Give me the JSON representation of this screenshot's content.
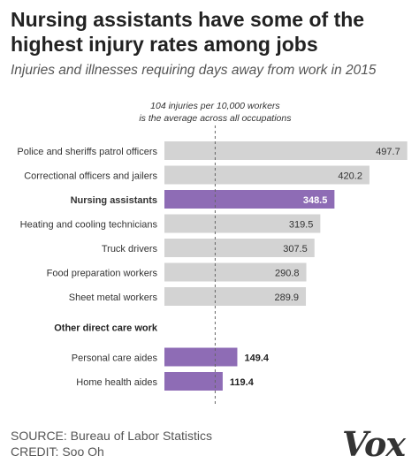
{
  "title": "Nursing assistants have some of the highest injury rates among jobs",
  "subtitle": "Injuries and illnesses requiring days away from work in 2015",
  "source": "SOURCE: Bureau of Labor Statistics",
  "credit": "CREDIT: Soo Oh",
  "logo": "Vox",
  "chart_data": {
    "type": "bar",
    "orientation": "horizontal",
    "xlim": [
      0,
      500
    ],
    "reference_line": {
      "value": 104,
      "label_line1": "104 injuries per 10,000 workers",
      "label_line2": "is the average across all occupations"
    },
    "groups": [
      {
        "heading": "",
        "categories": [
          "Police and sheriffs patrol officers",
          "Correctional officers and jailers",
          "Nursing assistants",
          "Heating and cooling technicians",
          "Truck drivers",
          "Food preparation workers",
          "Sheet metal workers"
        ],
        "values": [
          497.7,
          420.2,
          348.5,
          319.5,
          307.5,
          290.8,
          289.9
        ],
        "labels": [
          "497.7",
          "420.2",
          "348.5",
          "319.5",
          "307.5",
          "290.8",
          "289.9"
        ],
        "highlight": [
          false,
          false,
          true,
          false,
          false,
          false,
          false
        ]
      },
      {
        "heading": "Other direct care work",
        "categories": [
          "Personal care aides",
          "Home health aides"
        ],
        "values": [
          149.4,
          119.4
        ],
        "labels": [
          "149.4",
          "119.4"
        ],
        "highlight": [
          true,
          true
        ]
      }
    ],
    "colors": {
      "default": "#d3d3d3",
      "highlight": "#8e6cb5",
      "reference_line": "#666666"
    }
  }
}
